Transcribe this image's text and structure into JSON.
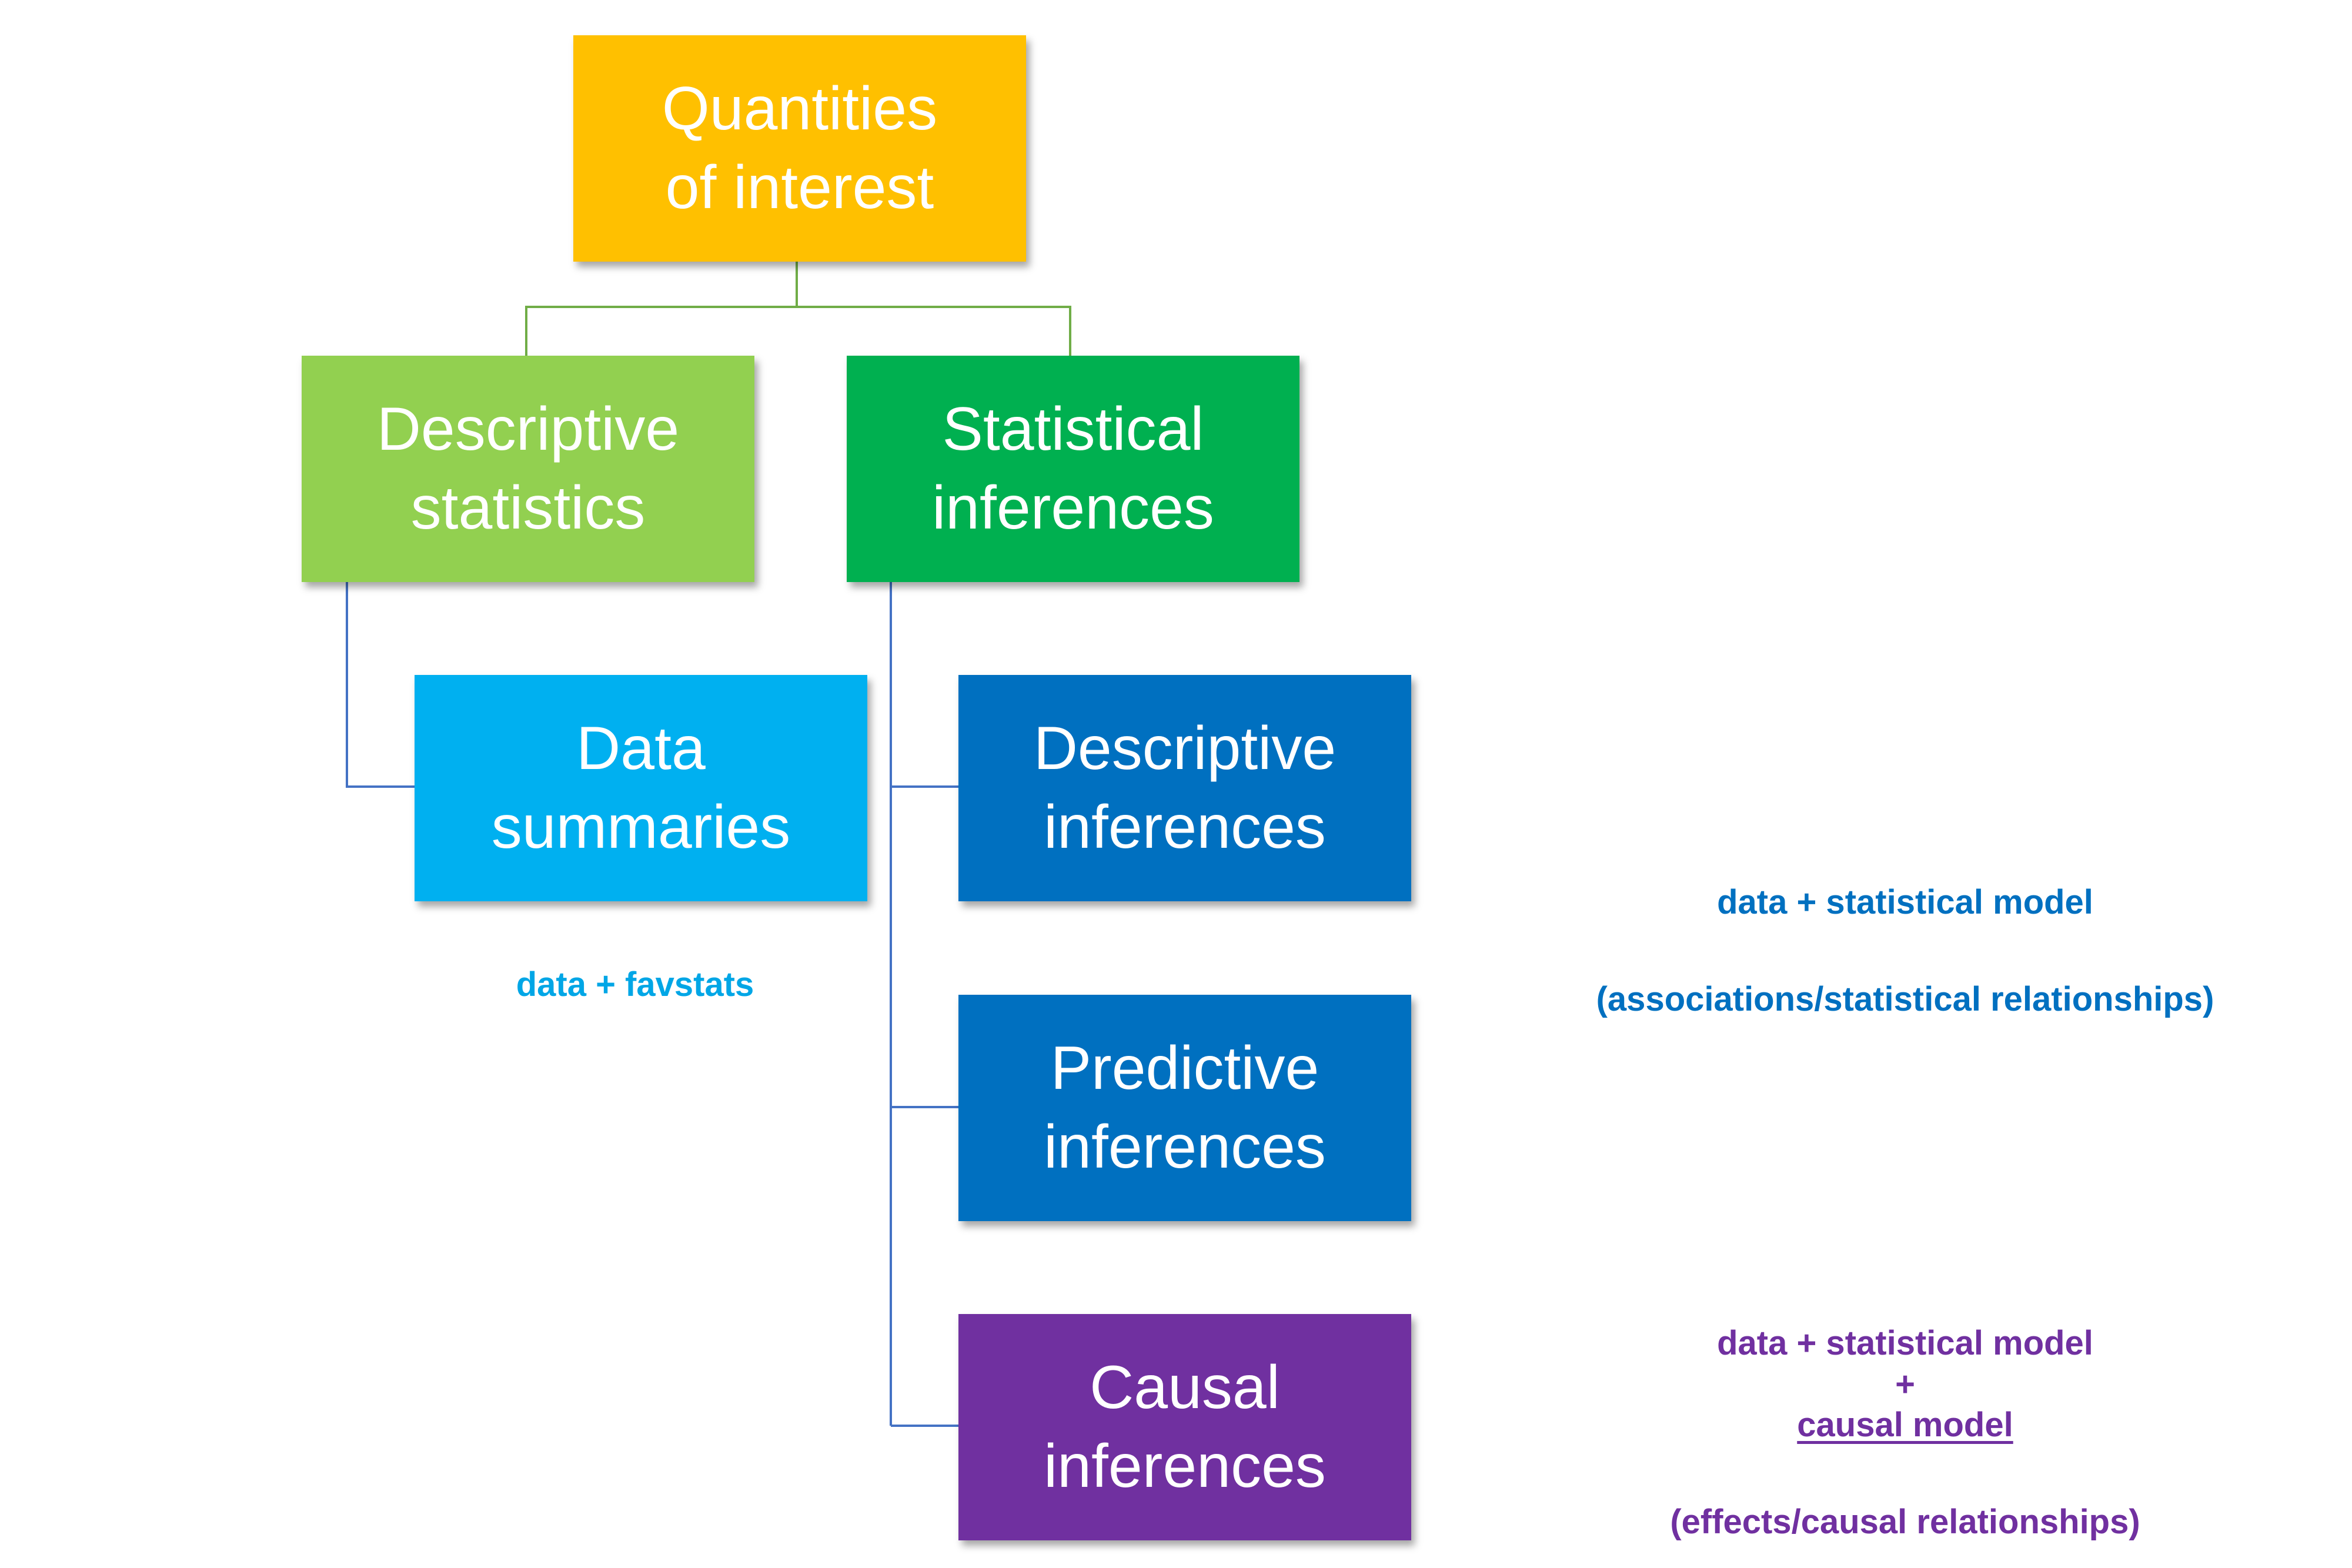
{
  "colors": {
    "root": "#ffc000",
    "descriptive_statistics": "#92d050",
    "statistical_inferences": "#00b050",
    "data_summaries": "#00b0f0",
    "descriptive_inferences": "#0070c0",
    "predictive_inferences": "#0070c0",
    "causal_inferences": "#7030a0",
    "connector_green": "#70ad47",
    "connector_blue": "#4472c4",
    "note_light_blue": "#00a6e6",
    "note_dark_blue": "#0070c0",
    "note_purple": "#7030a0"
  },
  "nodes": {
    "root": {
      "line1": "Quantities",
      "line2": "of interest"
    },
    "descriptive_statistics": {
      "line1": "Descriptive",
      "line2": "statistics"
    },
    "statistical_inferences": {
      "line1": "Statistical",
      "line2": "inferences"
    },
    "data_summaries": {
      "line1": "Data",
      "line2": "summaries"
    },
    "descriptive_inferences": {
      "line1": "Descriptive",
      "line2": "inferences"
    },
    "predictive_inferences": {
      "line1": "Predictive",
      "line2": "inferences"
    },
    "causal_inferences": {
      "line1": "Causal",
      "line2": "inferences"
    }
  },
  "notes": {
    "favstats": "data + favstats",
    "statistical_model": "data + statistical model",
    "associations": "(associations/statistical relationships)",
    "causal_line1": "data + statistical model",
    "causal_plus": "+",
    "causal_model": "causal model",
    "effects": "(effects/causal relationships)"
  }
}
